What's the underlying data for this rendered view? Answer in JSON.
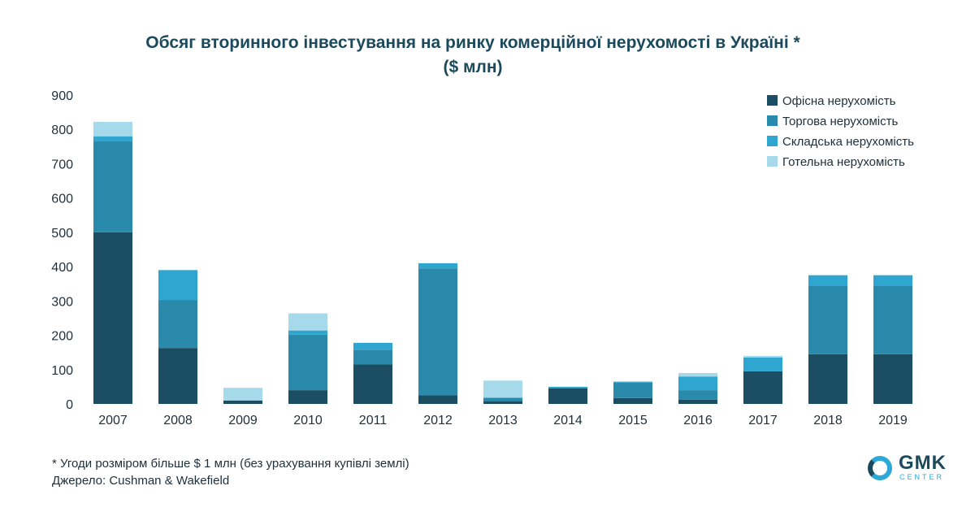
{
  "title_line1": "Обсяг вторинного інвестування на ринку комерційної нерухомості в Україні *",
  "title_line2": "($ млн)",
  "footnote_line1": "* Угоди розміром більше $ 1 млн (без урахування купівлі землі)",
  "footnote_line2": "Джерело: Cushman & Wakefield",
  "logo": {
    "text": "GMK",
    "sub": "CENTER"
  },
  "chart_data": {
    "type": "bar",
    "stacked": true,
    "categories": [
      "2007",
      "2008",
      "2009",
      "2010",
      "2011",
      "2012",
      "2013",
      "2014",
      "2015",
      "2016",
      "2017",
      "2018",
      "2019"
    ],
    "series": [
      {
        "name": "Офісна нерухомість",
        "color": "#1b4e62",
        "values": [
          500,
          163,
          10,
          40,
          115,
          25,
          8,
          45,
          17,
          12,
          95,
          145,
          145
        ]
      },
      {
        "name": "Торгова нерухомість",
        "color": "#2a8aab",
        "values": [
          265,
          140,
          0,
          162,
          43,
          370,
          10,
          0,
          45,
          28,
          0,
          200,
          200
        ]
      },
      {
        "name": "Складська нерухомість",
        "color": "#2ea6d0",
        "values": [
          15,
          87,
          0,
          12,
          20,
          15,
          0,
          5,
          3,
          40,
          40,
          30,
          30
        ]
      },
      {
        "name": "Готельна нерухомість",
        "color": "#a6d9ea",
        "values": [
          42,
          0,
          37,
          50,
          0,
          0,
          50,
          0,
          0,
          10,
          5,
          0,
          0
        ]
      }
    ],
    "yticks": [
      0,
      100,
      200,
      300,
      400,
      500,
      600,
      700,
      800,
      900
    ],
    "ylim": [
      0,
      900
    ],
    "grid": false,
    "legend_position": "top-right"
  }
}
